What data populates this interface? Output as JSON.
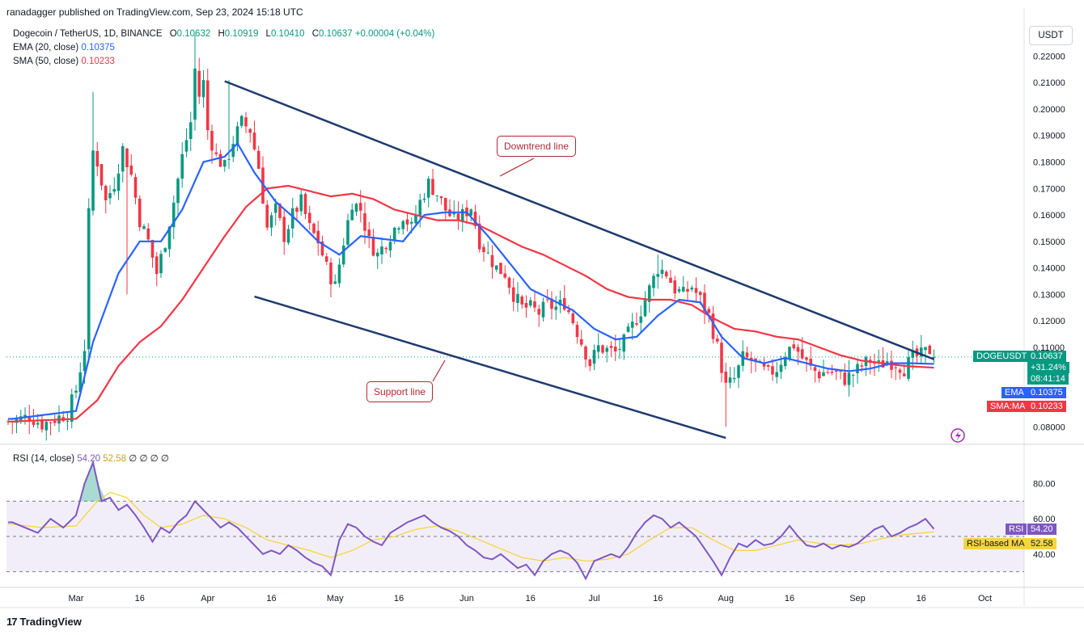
{
  "header": {
    "published": "ranadagger published on TradingView.com, Sep 23, 2024 15:18 UTC"
  },
  "legend": {
    "symbol": "Dogecoin / TetherUS, 1D, BINANCE",
    "o_label": "O",
    "o": "0.10632",
    "h_label": "H",
    "h": "0.10919",
    "l_label": "L",
    "l": "0.10410",
    "c_label": "C",
    "c": "0.10637",
    "change": "+0.00004 (+0.04%)",
    "ema_label": "EMA (20, close)",
    "ema_value": "0.10375",
    "sma_label": "SMA (50, close)",
    "sma_value": "0.10233"
  },
  "rsi_legend": {
    "label": "RSI (14, close)",
    "rsi_value": "54.20",
    "ma_value": "52.58",
    "extra": "∅ ∅ ∅ ∅"
  },
  "currency_button": "USDT",
  "annotations": {
    "downtrend": "Downtrend line",
    "support": "Support line"
  },
  "tags": {
    "symbol": "DOGEUSDT",
    "price": "0.10637",
    "pct": "+31.24%",
    "timer": "08:41:14",
    "ema": "EMA",
    "ema_value": "0.10375",
    "sma": "SMA:MA",
    "sma_value": "0.10233",
    "rsi": "RSI",
    "rsi_value": "54.20",
    "rsi_ma": "RSI-based MA",
    "rsi_ma_value": "52.58"
  },
  "footer": {
    "logo": "17",
    "brand": "TradingView"
  },
  "colors": {
    "up": "#089981",
    "down": "#f23645",
    "ema": "#2962ff",
    "sma": "#f23645",
    "trendline": "#1e3a6e",
    "rsi": "#7e57c2",
    "rsi_ma": "#f5d442",
    "annotation": "#b22833"
  },
  "chart_data": {
    "type": "candlestick",
    "price_axis": {
      "ticks": [
        "0.22000",
        "0.21000",
        "0.20000",
        "0.19000",
        "0.18000",
        "0.17000",
        "0.16000",
        "0.15000",
        "0.14000",
        "0.13000",
        "0.12000",
        "0.11000",
        "0.08000"
      ],
      "range": [
        0.074,
        0.232
      ]
    },
    "rsi_axis": {
      "ticks": [
        "80.00",
        "60.00",
        "40.00"
      ],
      "range": [
        22,
        100
      ],
      "bands": [
        30,
        50,
        70
      ]
    },
    "x_axis": {
      "ticks": [
        "Mar",
        "16",
        "Apr",
        "16",
        "May",
        "16",
        "Jun",
        "16",
        "Jul",
        "16",
        "Aug",
        "16",
        "Sep",
        "16",
        "Oct"
      ],
      "ticks_days": [
        0,
        15,
        31,
        46,
        61,
        76,
        92,
        107,
        122,
        137,
        153,
        168,
        184,
        199,
        214
      ]
    },
    "price_keypoints": [
      [
        -15,
        0.082
      ],
      [
        -11,
        0.084
      ],
      [
        -8,
        0.081
      ],
      [
        -5,
        0.083
      ],
      [
        -2,
        0.085
      ],
      [
        0,
        0.094
      ],
      [
        2,
        0.11
      ],
      [
        3,
        0.16
      ],
      [
        4,
        0.184
      ],
      [
        5,
        0.18
      ],
      [
        7,
        0.165
      ],
      [
        9,
        0.172
      ],
      [
        11,
        0.185
      ],
      [
        13,
        0.175
      ],
      [
        15,
        0.158
      ],
      [
        17,
        0.15
      ],
      [
        19,
        0.138
      ],
      [
        21,
        0.15
      ],
      [
        23,
        0.165
      ],
      [
        25,
        0.182
      ],
      [
        27,
        0.195
      ],
      [
        28,
        0.215
      ],
      [
        29,
        0.205
      ],
      [
        30,
        0.21
      ],
      [
        31,
        0.192
      ],
      [
        33,
        0.182
      ],
      [
        35,
        0.178
      ],
      [
        37,
        0.188
      ],
      [
        39,
        0.195
      ],
      [
        41,
        0.192
      ],
      [
        43,
        0.178
      ],
      [
        45,
        0.155
      ],
      [
        47,
        0.162
      ],
      [
        49,
        0.152
      ],
      [
        51,
        0.16
      ],
      [
        53,
        0.165
      ],
      [
        55,
        0.155
      ],
      [
        57,
        0.15
      ],
      [
        59,
        0.14
      ],
      [
        61,
        0.133
      ],
      [
        63,
        0.15
      ],
      [
        65,
        0.165
      ],
      [
        67,
        0.162
      ],
      [
        69,
        0.15
      ],
      [
        71,
        0.145
      ],
      [
        73,
        0.15
      ],
      [
        75,
        0.155
      ],
      [
        77,
        0.16
      ],
      [
        79,
        0.155
      ],
      [
        81,
        0.165
      ],
      [
        83,
        0.172
      ],
      [
        85,
        0.168
      ],
      [
        87,
        0.162
      ],
      [
        89,
        0.158
      ],
      [
        91,
        0.16
      ],
      [
        93,
        0.163
      ],
      [
        95,
        0.15
      ],
      [
        97,
        0.145
      ],
      [
        99,
        0.14
      ],
      [
        101,
        0.138
      ],
      [
        103,
        0.13
      ],
      [
        105,
        0.125
      ],
      [
        107,
        0.125
      ],
      [
        109,
        0.123
      ],
      [
        111,
        0.126
      ],
      [
        113,
        0.125
      ],
      [
        115,
        0.127
      ],
      [
        117,
        0.12
      ],
      [
        119,
        0.112
      ],
      [
        121,
        0.104
      ],
      [
        123,
        0.11
      ],
      [
        125,
        0.109
      ],
      [
        127,
        0.108
      ],
      [
        129,
        0.112
      ],
      [
        131,
        0.118
      ],
      [
        133,
        0.124
      ],
      [
        135,
        0.132
      ],
      [
        137,
        0.14
      ],
      [
        139,
        0.138
      ],
      [
        141,
        0.132
      ],
      [
        143,
        0.13
      ],
      [
        145,
        0.133
      ],
      [
        147,
        0.128
      ],
      [
        149,
        0.122
      ],
      [
        151,
        0.11
      ],
      [
        153,
        0.095
      ],
      [
        155,
        0.098
      ],
      [
        157,
        0.106
      ],
      [
        159,
        0.105
      ],
      [
        161,
        0.102
      ],
      [
        163,
        0.1
      ],
      [
        165,
        0.102
      ],
      [
        167,
        0.108
      ],
      [
        169,
        0.111
      ],
      [
        171,
        0.106
      ],
      [
        173,
        0.102
      ],
      [
        175,
        0.1
      ],
      [
        177,
        0.101
      ],
      [
        179,
        0.1
      ],
      [
        181,
        0.098
      ],
      [
        183,
        0.1
      ],
      [
        185,
        0.103
      ],
      [
        187,
        0.105
      ],
      [
        189,
        0.103
      ],
      [
        191,
        0.105
      ],
      [
        193,
        0.104
      ],
      [
        195,
        0.102
      ],
      [
        197,
        0.106
      ],
      [
        199,
        0.107
      ],
      [
        201,
        0.109
      ],
      [
        202,
        0.1064
      ]
    ],
    "ema_keypoints": [
      [
        -15,
        0.083
      ],
      [
        0,
        0.086
      ],
      [
        4,
        0.112
      ],
      [
        10,
        0.138
      ],
      [
        15,
        0.15
      ],
      [
        20,
        0.15
      ],
      [
        25,
        0.162
      ],
      [
        30,
        0.18
      ],
      [
        35,
        0.182
      ],
      [
        38,
        0.187
      ],
      [
        42,
        0.176
      ],
      [
        47,
        0.165
      ],
      [
        52,
        0.158
      ],
      [
        57,
        0.15
      ],
      [
        62,
        0.145
      ],
      [
        67,
        0.152
      ],
      [
        72,
        0.151
      ],
      [
        77,
        0.15
      ],
      [
        82,
        0.16
      ],
      [
        87,
        0.161
      ],
      [
        92,
        0.161
      ],
      [
        97,
        0.152
      ],
      [
        102,
        0.142
      ],
      [
        107,
        0.132
      ],
      [
        112,
        0.128
      ],
      [
        117,
        0.124
      ],
      [
        122,
        0.117
      ],
      [
        127,
        0.113
      ],
      [
        132,
        0.114
      ],
      [
        137,
        0.122
      ],
      [
        142,
        0.128
      ],
      [
        147,
        0.127
      ],
      [
        152,
        0.114
      ],
      [
        157,
        0.106
      ],
      [
        162,
        0.104
      ],
      [
        167,
        0.106
      ],
      [
        172,
        0.104
      ],
      [
        177,
        0.102
      ],
      [
        182,
        0.101
      ],
      [
        187,
        0.102
      ],
      [
        192,
        0.104
      ],
      [
        197,
        0.104
      ],
      [
        202,
        0.10375
      ]
    ],
    "sma_keypoints": [
      [
        -15,
        0.082
      ],
      [
        0,
        0.083
      ],
      [
        5,
        0.09
      ],
      [
        10,
        0.103
      ],
      [
        15,
        0.112
      ],
      [
        20,
        0.118
      ],
      [
        25,
        0.128
      ],
      [
        30,
        0.14
      ],
      [
        35,
        0.152
      ],
      [
        40,
        0.163
      ],
      [
        45,
        0.17
      ],
      [
        50,
        0.171
      ],
      [
        55,
        0.169
      ],
      [
        60,
        0.167
      ],
      [
        65,
        0.168
      ],
      [
        70,
        0.166
      ],
      [
        75,
        0.162
      ],
      [
        80,
        0.16
      ],
      [
        85,
        0.158
      ],
      [
        90,
        0.158
      ],
      [
        95,
        0.156
      ],
      [
        100,
        0.152
      ],
      [
        105,
        0.148
      ],
      [
        110,
        0.145
      ],
      [
        115,
        0.141
      ],
      [
        120,
        0.137
      ],
      [
        125,
        0.132
      ],
      [
        130,
        0.129
      ],
      [
        135,
        0.128
      ],
      [
        140,
        0.128
      ],
      [
        145,
        0.126
      ],
      [
        150,
        0.121
      ],
      [
        155,
        0.117
      ],
      [
        160,
        0.116
      ],
      [
        165,
        0.114
      ],
      [
        170,
        0.113
      ],
      [
        175,
        0.11
      ],
      [
        180,
        0.107
      ],
      [
        185,
        0.105
      ],
      [
        190,
        0.104
      ],
      [
        195,
        0.103
      ],
      [
        202,
        0.10233
      ]
    ],
    "rsi_keypoints": [
      [
        -15,
        58
      ],
      [
        -12,
        55
      ],
      [
        -9,
        52
      ],
      [
        -6,
        60
      ],
      [
        -3,
        55
      ],
      [
        0,
        62
      ],
      [
        2,
        80
      ],
      [
        4,
        92
      ],
      [
        6,
        70
      ],
      [
        8,
        72
      ],
      [
        10,
        65
      ],
      [
        12,
        68
      ],
      [
        14,
        62
      ],
      [
        16,
        55
      ],
      [
        18,
        47
      ],
      [
        20,
        55
      ],
      [
        22,
        52
      ],
      [
        24,
        58
      ],
      [
        26,
        62
      ],
      [
        28,
        70
      ],
      [
        30,
        65
      ],
      [
        32,
        60
      ],
      [
        34,
        55
      ],
      [
        36,
        58
      ],
      [
        38,
        55
      ],
      [
        40,
        50
      ],
      [
        42,
        45
      ],
      [
        44,
        40
      ],
      [
        46,
        42
      ],
      [
        48,
        40
      ],
      [
        50,
        45
      ],
      [
        52,
        42
      ],
      [
        54,
        38
      ],
      [
        56,
        35
      ],
      [
        58,
        33
      ],
      [
        60,
        28
      ],
      [
        62,
        48
      ],
      [
        64,
        57
      ],
      [
        66,
        55
      ],
      [
        68,
        50
      ],
      [
        70,
        47
      ],
      [
        72,
        45
      ],
      [
        74,
        52
      ],
      [
        76,
        55
      ],
      [
        78,
        58
      ],
      [
        80,
        60
      ],
      [
        82,
        62
      ],
      [
        84,
        58
      ],
      [
        86,
        55
      ],
      [
        88,
        53
      ],
      [
        90,
        50
      ],
      [
        92,
        45
      ],
      [
        94,
        42
      ],
      [
        96,
        38
      ],
      [
        98,
        37
      ],
      [
        100,
        40
      ],
      [
        102,
        36
      ],
      [
        104,
        32
      ],
      [
        106,
        34
      ],
      [
        108,
        28
      ],
      [
        110,
        36
      ],
      [
        112,
        40
      ],
      [
        114,
        42
      ],
      [
        116,
        40
      ],
      [
        118,
        35
      ],
      [
        120,
        26
      ],
      [
        122,
        36
      ],
      [
        124,
        38
      ],
      [
        126,
        40
      ],
      [
        128,
        38
      ],
      [
        130,
        44
      ],
      [
        132,
        52
      ],
      [
        134,
        58
      ],
      [
        136,
        62
      ],
      [
        138,
        60
      ],
      [
        140,
        55
      ],
      [
        142,
        58
      ],
      [
        144,
        54
      ],
      [
        146,
        50
      ],
      [
        148,
        43
      ],
      [
        150,
        36
      ],
      [
        152,
        28
      ],
      [
        154,
        38
      ],
      [
        156,
        46
      ],
      [
        158,
        44
      ],
      [
        160,
        48
      ],
      [
        162,
        45
      ],
      [
        164,
        46
      ],
      [
        166,
        50
      ],
      [
        168,
        56
      ],
      [
        170,
        50
      ],
      [
        172,
        45
      ],
      [
        174,
        44
      ],
      [
        176,
        46
      ],
      [
        178,
        43
      ],
      [
        180,
        45
      ],
      [
        182,
        44
      ],
      [
        184,
        46
      ],
      [
        186,
        50
      ],
      [
        188,
        54
      ],
      [
        190,
        56
      ],
      [
        192,
        50
      ],
      [
        194,
        52
      ],
      [
        196,
        55
      ],
      [
        198,
        57
      ],
      [
        200,
        60
      ],
      [
        202,
        54.2
      ]
    ],
    "rsi_ma_keypoints": [
      [
        -15,
        57
      ],
      [
        -8,
        55
      ],
      [
        0,
        56
      ],
      [
        5,
        70
      ],
      [
        8,
        75
      ],
      [
        12,
        72
      ],
      [
        16,
        62
      ],
      [
        20,
        55
      ],
      [
        25,
        57
      ],
      [
        30,
        62
      ],
      [
        35,
        60
      ],
      [
        40,
        55
      ],
      [
        45,
        48
      ],
      [
        50,
        45
      ],
      [
        55,
        42
      ],
      [
        60,
        38
      ],
      [
        65,
        42
      ],
      [
        70,
        48
      ],
      [
        75,
        50
      ],
      [
        80,
        54
      ],
      [
        85,
        56
      ],
      [
        90,
        53
      ],
      [
        95,
        48
      ],
      [
        100,
        43
      ],
      [
        105,
        38
      ],
      [
        110,
        36
      ],
      [
        115,
        38
      ],
      [
        120,
        36
      ],
      [
        125,
        37
      ],
      [
        130,
        40
      ],
      [
        135,
        48
      ],
      [
        140,
        55
      ],
      [
        145,
        55
      ],
      [
        150,
        48
      ],
      [
        155,
        42
      ],
      [
        160,
        42
      ],
      [
        165,
        45
      ],
      [
        170,
        48
      ],
      [
        175,
        46
      ],
      [
        180,
        45
      ],
      [
        185,
        46
      ],
      [
        190,
        49
      ],
      [
        195,
        51
      ],
      [
        202,
        52.58
      ]
    ],
    "downtrend_line": [
      [
        35,
        0.2105
      ],
      [
        202,
        0.1055
      ]
    ],
    "support_line": [
      [
        42,
        0.1292
      ],
      [
        153,
        0.0758
      ]
    ]
  }
}
